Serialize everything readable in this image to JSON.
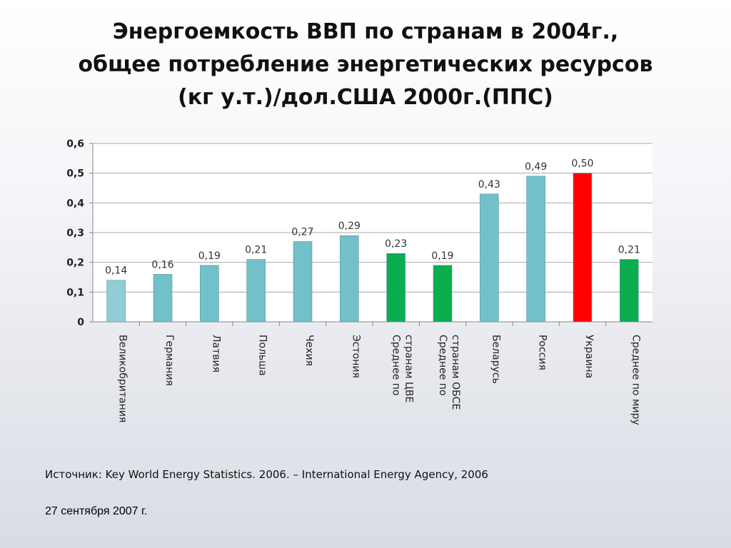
{
  "slide": {
    "title_lines": [
      "Энергоемкость ВВП по странам в 2004г.,",
      "общее потребление энергетических ресурсов",
      "(кг у.т.)/дол.США 2000г.(ППС)"
    ],
    "source": "Источник:  Key World Energy Statistics. 2006. – International Energy Agency, 2006",
    "date": "27 сентября 2007 г."
  },
  "chart_data": {
    "type": "bar",
    "categories": [
      "Великобритания",
      "Германия",
      "Латвия",
      "Польша",
      "Чехия",
      "Эстония",
      "Среднее по|странам ЦВЕ",
      "Среднее по|странам ОБСЕ",
      "Беларусь",
      "Россия",
      "Украина",
      "Среднее по миру"
    ],
    "values": [
      0.14,
      0.16,
      0.19,
      0.21,
      0.27,
      0.29,
      0.23,
      0.19,
      0.43,
      0.49,
      0.5,
      0.21
    ],
    "value_labels": [
      "0,14",
      "0,16",
      "0,19",
      "0,21",
      "0,27",
      "0,29",
      "0,23",
      "0,19",
      "0,43",
      "0,49",
      "0,50",
      "0,21"
    ],
    "bar_colors": [
      "#92cdd6",
      "#72c0c9",
      "#72c0c9",
      "#72c0c9",
      "#72c0c9",
      "#72c0c9",
      "#0aae4e",
      "#0aae4e",
      "#72c0c9",
      "#72c0c9",
      "#ff0000",
      "#0aae4e"
    ],
    "y_ticks": [
      "0",
      "0,1",
      "0,2",
      "0,3",
      "0,4",
      "0,5",
      "0,6"
    ],
    "ylim": [
      0,
      0.6
    ],
    "grid": true
  }
}
